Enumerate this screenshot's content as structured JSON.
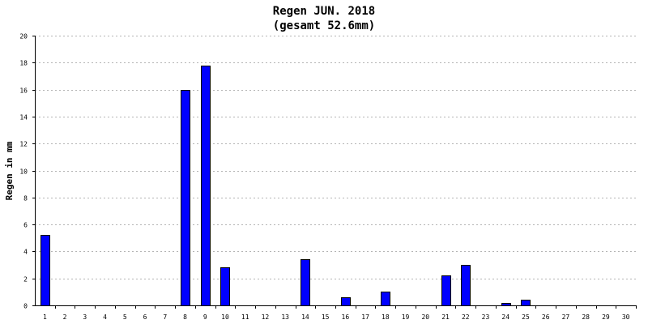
{
  "chart_data": {
    "type": "bar",
    "title": "Regen JUN. 2018",
    "subtitle": "(gesamt 52.6mm)",
    "ylabel": "Regen in mm",
    "xlabel": "",
    "ylim": [
      0,
      20
    ],
    "yticks": [
      0,
      2,
      4,
      6,
      8,
      10,
      12,
      14,
      16,
      18,
      20
    ],
    "grid": true,
    "bar_color": "#0000ff",
    "categories": [
      "1",
      "2",
      "3",
      "4",
      "5",
      "6",
      "7",
      "8",
      "9",
      "10",
      "11",
      "12",
      "13",
      "14",
      "15",
      "16",
      "17",
      "18",
      "19",
      "20",
      "21",
      "22",
      "23",
      "24",
      "25",
      "26",
      "27",
      "28",
      "29",
      "30"
    ],
    "values": [
      5.2,
      0,
      0,
      0,
      0,
      0,
      0,
      16.0,
      17.8,
      2.8,
      0,
      0,
      0,
      3.4,
      0,
      0.6,
      0,
      1.0,
      0,
      0,
      2.2,
      3.0,
      0,
      0.2,
      0.4,
      0,
      0,
      0,
      0,
      0
    ]
  }
}
